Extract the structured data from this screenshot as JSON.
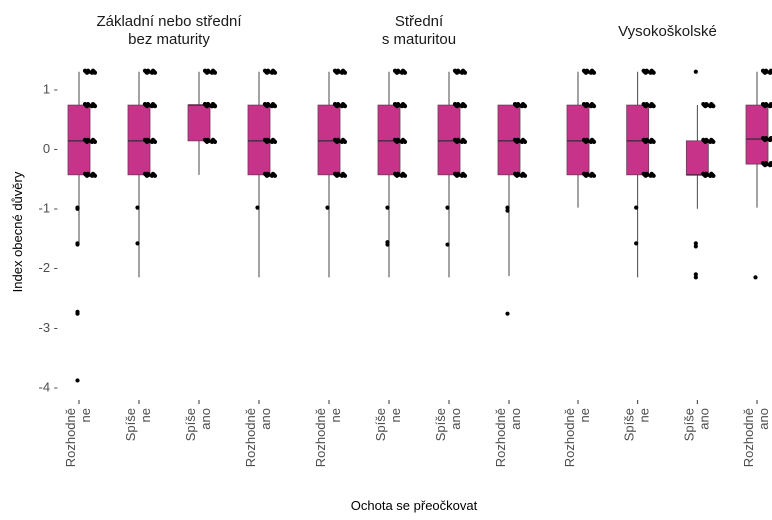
{
  "chart_data": {
    "type": "boxplot",
    "xlabel": "Ochota se přeočkovat",
    "ylabel": "Index obecné důvěry",
    "ylim": [
      -4.2,
      1.45
    ],
    "y_ticks": [
      1,
      0,
      -1,
      -2,
      -3,
      -4
    ],
    "y_tick_labels": [
      "1 -",
      "0 -",
      "-1 -",
      "-2 -",
      "-3 -",
      "-4 -"
    ],
    "grid": false,
    "box_color": "#c8338a",
    "median_color": "#5a2a4a",
    "whisker_color": "#333333",
    "point_color": "#000000",
    "categories": [
      {
        "line1": "Rozhodně",
        "line2": "ne"
      },
      {
        "line1": "Spíše",
        "line2": "ne"
      },
      {
        "line1": "Spíše",
        "line2": "ano"
      },
      {
        "line1": "Rozhodně",
        "line2": "ano"
      }
    ],
    "facets": [
      {
        "title_lines": [
          "Základní nebo střední",
          "bez maturity"
        ],
        "boxes": [
          {
            "q1": -0.45,
            "median": 0.12,
            "q3": 0.72,
            "low": -1.6,
            "high": 1.28,
            "outliers": [
              -1.0,
              -1.02,
              -1.6,
              -1.62,
              -2.75,
              -2.78,
              -3.9
            ]
          },
          {
            "q1": -0.45,
            "median": 0.12,
            "q3": 0.72,
            "low": -2.17,
            "high": 1.28,
            "outliers": [
              -1.0,
              -1.6
            ]
          },
          {
            "q1": 0.12,
            "median": 0.72,
            "q3": 0.72,
            "low": -0.45,
            "high": 1.28,
            "outliers": []
          },
          {
            "q1": -0.45,
            "median": 0.12,
            "q3": 0.72,
            "low": -2.17,
            "high": 1.28,
            "outliers": [
              -1.0
            ]
          }
        ]
      },
      {
        "title_lines": [
          "Střední",
          "s maturitou"
        ],
        "boxes": [
          {
            "q1": -0.45,
            "median": 0.12,
            "q3": 0.72,
            "low": -2.17,
            "high": 1.28,
            "outliers": [
              -1.0
            ]
          },
          {
            "q1": -0.45,
            "median": 0.12,
            "q3": 0.72,
            "low": -2.17,
            "high": 1.28,
            "outliers": [
              -1.0,
              -1.58,
              -1.62
            ]
          },
          {
            "q1": -0.45,
            "median": 0.12,
            "q3": 0.72,
            "low": -2.17,
            "high": 1.28,
            "outliers": [
              -1.0,
              -1.62
            ]
          },
          {
            "q1": -0.45,
            "median": 0.12,
            "q3": 0.72,
            "low": -2.15,
            "high": 0.72,
            "outliers": [
              -1.0,
              -1.05,
              -2.78
            ]
          }
        ]
      },
      {
        "title_lines": [
          "Vysokoškolské"
        ],
        "boxes": [
          {
            "q1": -0.45,
            "median": 0.12,
            "q3": 0.72,
            "low": -1.0,
            "high": 1.28,
            "outliers": []
          },
          {
            "q1": -0.45,
            "median": 0.12,
            "q3": 0.72,
            "low": -2.17,
            "high": 1.28,
            "outliers": [
              -1.0,
              -1.6
            ]
          },
          {
            "q1": -0.45,
            "median": -0.45,
            "q3": 0.12,
            "low": -1.02,
            "high": 0.72,
            "outliers": [
              1.28,
              -1.6,
              -1.65,
              -2.12,
              -2.17
            ]
          },
          {
            "q1": -0.27,
            "median": 0.15,
            "q3": 0.72,
            "low": -1.0,
            "high": 1.28,
            "outliers": [
              -2.17
            ]
          }
        ]
      }
    ]
  }
}
